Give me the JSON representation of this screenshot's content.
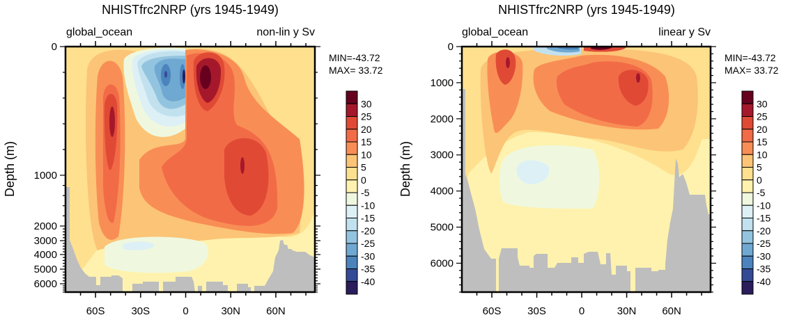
{
  "chart_data": [
    {
      "type": "contour",
      "title": "NHISTfrc2NRP (yrs 1945-1949)",
      "left_string": "global_ocean",
      "right_string": "non-lin y Sv",
      "ylabel": "Depth (m)",
      "y_scale": "non-linear",
      "ylim": [
        0,
        6800
      ],
      "xlim": [
        -80,
        86
      ],
      "xticks": [
        {
          "value": -60,
          "label": "60S"
        },
        {
          "value": -30,
          "label": "30S"
        },
        {
          "value": 0,
          "label": "0"
        },
        {
          "value": 30,
          "label": "30N"
        },
        {
          "value": 60,
          "label": "60N"
        }
      ],
      "yticks": [
        {
          "value": 0,
          "label": "0"
        },
        {
          "value": 1000,
          "label": "1000"
        },
        {
          "value": 2000,
          "label": "2000"
        },
        {
          "value": 3000,
          "label": "3000"
        },
        {
          "value": 4000,
          "label": "4000"
        },
        {
          "value": 5000,
          "label": "5000"
        },
        {
          "value": 6000,
          "label": "6000"
        }
      ],
      "min_label": "MIN=-43.72",
      "max_label": "MAX= 33.72",
      "min": -43.72,
      "max": 33.72
    },
    {
      "type": "contour",
      "title": "NHISTfrc2NRP (yrs 1945-1949)",
      "left_string": "global_ocean",
      "right_string": "linear y Sv",
      "ylabel": "Depth (m)",
      "y_scale": "linear",
      "ylim": [
        0,
        6800
      ],
      "xlim": [
        -80,
        86
      ],
      "xticks": [
        {
          "value": -60,
          "label": "60S"
        },
        {
          "value": -30,
          "label": "30S"
        },
        {
          "value": 0,
          "label": "0"
        },
        {
          "value": 30,
          "label": "30N"
        },
        {
          "value": 60,
          "label": "60N"
        }
      ],
      "yticks": [
        {
          "value": 0,
          "label": "0"
        },
        {
          "value": 1000,
          "label": "1000"
        },
        {
          "value": 2000,
          "label": "2000"
        },
        {
          "value": 3000,
          "label": "3000"
        },
        {
          "value": 4000,
          "label": "4000"
        },
        {
          "value": 5000,
          "label": "5000"
        },
        {
          "value": 6000,
          "label": "6000"
        }
      ],
      "min_label": "MIN=-43.72",
      "max_label": "MAX= 33.72",
      "min": -43.72,
      "max": 33.72
    }
  ],
  "colorbar": {
    "labels": [
      "30",
      "25",
      "20",
      "15",
      "10",
      "5",
      "0",
      "-5",
      "-10",
      "-15",
      "-20",
      "-25",
      "-30",
      "-35",
      "-40"
    ],
    "colors": [
      "#67001f",
      "#a5182b",
      "#e04a35",
      "#f26b47",
      "#f88e55",
      "#fcc476",
      "#fee08f",
      "#fef2ae",
      "#eff8df",
      "#ddf0f6",
      "#c2e1ee",
      "#93c4df",
      "#6fa9d2",
      "#4b84bd",
      "#354a96",
      "#2b1d5c"
    ]
  },
  "land_color": "#bebebe"
}
